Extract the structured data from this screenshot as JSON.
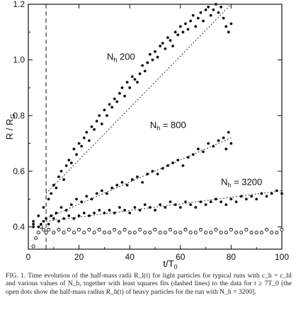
{
  "chart_data": {
    "type": "scatter",
    "title": "",
    "xlabel": "t/T",
    "xlabel_sub": "0",
    "ylabel": "R / R",
    "ylabel_sub": "G",
    "xlim": [
      0,
      100
    ],
    "ylim": [
      0.32,
      1.2
    ],
    "x_ticks": [
      0,
      20,
      40,
      60,
      80,
      100
    ],
    "x_tick_labels": [
      "0",
      "20",
      "40",
      "60",
      "80",
      "100"
    ],
    "y_ticks": [
      0.4,
      0.6,
      0.8,
      1.0,
      1.2
    ],
    "y_tick_labels": [
      "0.4",
      "0.6",
      "0.8",
      "1.0",
      "1.2"
    ],
    "grid": false,
    "vertical_dashed_line_x": 7,
    "annotations": [
      {
        "text": "N",
        "sub": "h",
        "rest": " 200",
        "x": 31,
        "y": 1.0
      },
      {
        "text": "N",
        "sub": "h",
        "rest": " = 800",
        "x": 48,
        "y": 0.755
      },
      {
        "text": "N",
        "sub": "h",
        "rest": " = 3200",
        "x": 76,
        "y": 0.55
      }
    ],
    "series": [
      {
        "name": "N_h = 200",
        "marker": "filled",
        "x": [
          2,
          4,
          6,
          8,
          9,
          10,
          11,
          12,
          13,
          14,
          15,
          16,
          17,
          18,
          19,
          20,
          21,
          22,
          23,
          24,
          25,
          26,
          27,
          28,
          29,
          30,
          31,
          32,
          33,
          34,
          35,
          36,
          37,
          38,
          39,
          40,
          41,
          42,
          43,
          44,
          45,
          46,
          47,
          48,
          49,
          50,
          51,
          52,
          53,
          54,
          55,
          56,
          57,
          58,
          59,
          60,
          61,
          62,
          63,
          64,
          65,
          66,
          67,
          68,
          69,
          70,
          71,
          72,
          73,
          74,
          75,
          76,
          77,
          78,
          79,
          80
        ],
        "y": [
          0.42,
          0.44,
          0.47,
          0.5,
          0.52,
          0.55,
          0.54,
          0.58,
          0.6,
          0.57,
          0.62,
          0.64,
          0.63,
          0.68,
          0.66,
          0.7,
          0.69,
          0.72,
          0.74,
          0.71,
          0.76,
          0.75,
          0.78,
          0.8,
          0.77,
          0.82,
          0.8,
          0.84,
          0.83,
          0.86,
          0.85,
          0.88,
          0.9,
          0.87,
          0.92,
          0.9,
          0.94,
          0.93,
          0.92,
          0.95,
          0.98,
          0.96,
          0.99,
          1.02,
          1.0,
          1.03,
          1.01,
          1.05,
          1.06,
          1.04,
          1.08,
          1.07,
          1.05,
          1.1,
          1.09,
          1.12,
          1.1,
          1.13,
          1.11,
          1.14,
          1.16,
          1.12,
          1.15,
          1.17,
          1.14,
          1.18,
          1.19,
          1.16,
          1.18,
          1.2,
          1.17,
          1.19,
          1.15,
          1.12,
          1.1,
          1.13
        ]
      },
      {
        "name": "N_h = 800",
        "marker": "filled",
        "x": [
          2,
          5,
          7,
          9,
          11,
          13,
          15,
          17,
          19,
          21,
          23,
          25,
          27,
          29,
          31,
          33,
          35,
          37,
          39,
          41,
          43,
          45,
          47,
          49,
          51,
          53,
          55,
          57,
          59,
          61,
          63,
          65,
          67,
          69,
          71,
          73,
          75,
          77,
          78,
          79,
          80
        ],
        "y": [
          0.4,
          0.41,
          0.43,
          0.44,
          0.45,
          0.47,
          0.46,
          0.48,
          0.5,
          0.49,
          0.51,
          0.5,
          0.52,
          0.53,
          0.52,
          0.54,
          0.55,
          0.56,
          0.55,
          0.57,
          0.58,
          0.56,
          0.59,
          0.6,
          0.59,
          0.61,
          0.62,
          0.63,
          0.64,
          0.62,
          0.65,
          0.66,
          0.68,
          0.67,
          0.7,
          0.69,
          0.71,
          0.72,
          0.68,
          0.74,
          0.7
        ]
      },
      {
        "name": "N_h = 3200",
        "marker": "filled",
        "x": [
          2,
          4,
          6,
          8,
          10,
          12,
          14,
          16,
          18,
          20,
          22,
          24,
          26,
          28,
          30,
          32,
          34,
          36,
          38,
          40,
          42,
          44,
          46,
          48,
          50,
          52,
          54,
          56,
          58,
          60,
          62,
          64,
          66,
          68,
          70,
          72,
          74,
          76,
          78,
          80,
          82,
          84,
          86,
          88,
          90,
          92,
          94,
          96,
          98,
          100
        ],
        "y": [
          0.41,
          0.4,
          0.42,
          0.41,
          0.43,
          0.42,
          0.43,
          0.44,
          0.43,
          0.44,
          0.45,
          0.44,
          0.45,
          0.46,
          0.45,
          0.46,
          0.45,
          0.47,
          0.46,
          0.45,
          0.47,
          0.46,
          0.48,
          0.47,
          0.46,
          0.48,
          0.47,
          0.49,
          0.48,
          0.47,
          0.49,
          0.48,
          0.47,
          0.49,
          0.48,
          0.49,
          0.5,
          0.49,
          0.48,
          0.5,
          0.49,
          0.51,
          0.5,
          0.51,
          0.5,
          0.52,
          0.51,
          0.52,
          0.53,
          0.52
        ]
      },
      {
        "name": "heavy, N_h = 3200",
        "marker": "open",
        "x": [
          2,
          3,
          4,
          5,
          6,
          7,
          8,
          10,
          12,
          14,
          16,
          18,
          20,
          22,
          24,
          26,
          28,
          30,
          32,
          34,
          36,
          38,
          40,
          42,
          44,
          46,
          48,
          50,
          52,
          54,
          56,
          58,
          60,
          62,
          64,
          66,
          68,
          70,
          72,
          74,
          76,
          78,
          80,
          82,
          84,
          86,
          88,
          90,
          92,
          94,
          96,
          98,
          100
        ],
        "y": [
          0.33,
          0.36,
          0.38,
          0.4,
          0.39,
          0.38,
          0.39,
          0.38,
          0.39,
          0.38,
          0.39,
          0.38,
          0.39,
          0.38,
          0.39,
          0.38,
          0.39,
          0.38,
          0.38,
          0.39,
          0.38,
          0.39,
          0.38,
          0.38,
          0.39,
          0.38,
          0.38,
          0.39,
          0.38,
          0.38,
          0.39,
          0.38,
          0.38,
          0.39,
          0.38,
          0.38,
          0.39,
          0.38,
          0.38,
          0.39,
          0.38,
          0.38,
          0.39,
          0.38,
          0.38,
          0.39,
          0.38,
          0.38,
          0.38,
          0.39,
          0.38,
          0.38,
          0.39
        ]
      }
    ],
    "fits": [
      {
        "name": "fit N_h = 200",
        "x": [
          7,
          80
        ],
        "y": [
          0.52,
          1.2
        ]
      },
      {
        "name": "fit N_h = 800",
        "x": [
          7,
          80
        ],
        "y": [
          0.43,
          0.72
        ]
      },
      {
        "name": "fit N_h = 3200",
        "x": [
          7,
          100
        ],
        "y": [
          0.42,
          0.53
        ]
      }
    ]
  },
  "caption": {
    "text": "FIG. 1.   Time evolution of the half-mass radii R_l(t) for light particles for typical runs with c_h = c_hl and various values of N_h, together with least squares fits (dashed lines) to the data for t ≥ 7T_0 [the open dots show the half-mass radius R_h(t) of heavy particles for the run with N_h = 3200]."
  }
}
